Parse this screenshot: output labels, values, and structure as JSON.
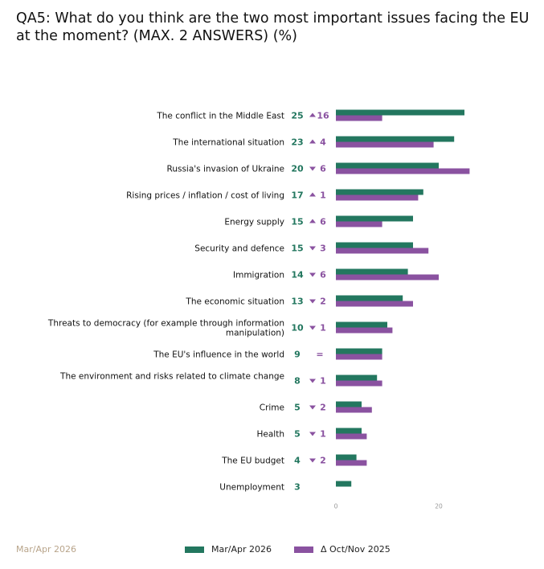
{
  "title": "QA5: What do you think are the two most important issues facing the EU at the moment? (MAX. 2 ANSWERS) (%)",
  "footnote": "Mar/Apr 2026",
  "colors": {
    "current": "#23775f",
    "previous": "#8a52a0",
    "axis": "#999999"
  },
  "legend": [
    {
      "label": "Mar/Apr 2026",
      "color_key": "current"
    },
    {
      "label": "Δ Oct/Nov 2025",
      "color_key": "previous"
    }
  ],
  "chart_data": {
    "type": "bar",
    "orientation": "horizontal",
    "categories": [
      "The conflict in the Middle East",
      "The international situation",
      "Russia's invasion of Ukraine",
      "Rising prices / inflation / cost of living",
      "Energy supply",
      "Security and defence",
      "Immigration",
      "The economic situation",
      "Threats to democracy (for example through information manipulation)",
      "The EU's influence in the world",
      "The environment and risks related to climate change",
      "Crime",
      "Health",
      "The EU budget",
      "Unemployment"
    ],
    "series": [
      {
        "name": "Mar/Apr 2026",
        "values": [
          25,
          23,
          20,
          17,
          15,
          15,
          14,
          13,
          10,
          9,
          8,
          5,
          5,
          4,
          3
        ]
      },
      {
        "name": "Δ Oct/Nov 2025",
        "values": [
          9,
          19,
          26,
          16,
          9,
          18,
          20,
          15,
          11,
          9,
          9,
          7,
          6,
          6,
          null
        ]
      }
    ],
    "value_labels": [
      "25",
      "23",
      "20",
      "17",
      "15",
      "15",
      "14",
      "13",
      "10",
      "9",
      "8",
      "5",
      "5",
      "4",
      "3"
    ],
    "delta_labels": [
      {
        "dir": "up",
        "text": "16"
      },
      {
        "dir": "up",
        "text": "4"
      },
      {
        "dir": "down",
        "text": "6"
      },
      {
        "dir": "up",
        "text": "1"
      },
      {
        "dir": "up",
        "text": "6"
      },
      {
        "dir": "down",
        "text": "3"
      },
      {
        "dir": "down",
        "text": "6"
      },
      {
        "dir": "down",
        "text": "2"
      },
      {
        "dir": "down",
        "text": "1"
      },
      {
        "dir": "equal",
        "text": "="
      },
      {
        "dir": "down",
        "text": "1"
      },
      {
        "dir": "down",
        "text": "2"
      },
      {
        "dir": "down",
        "text": "1"
      },
      {
        "dir": "down",
        "text": "2"
      },
      {
        "dir": "none",
        "text": ""
      }
    ],
    "xticks": [
      0,
      20
    ],
    "xlim": [
      0,
      40
    ],
    "grid": false
  }
}
